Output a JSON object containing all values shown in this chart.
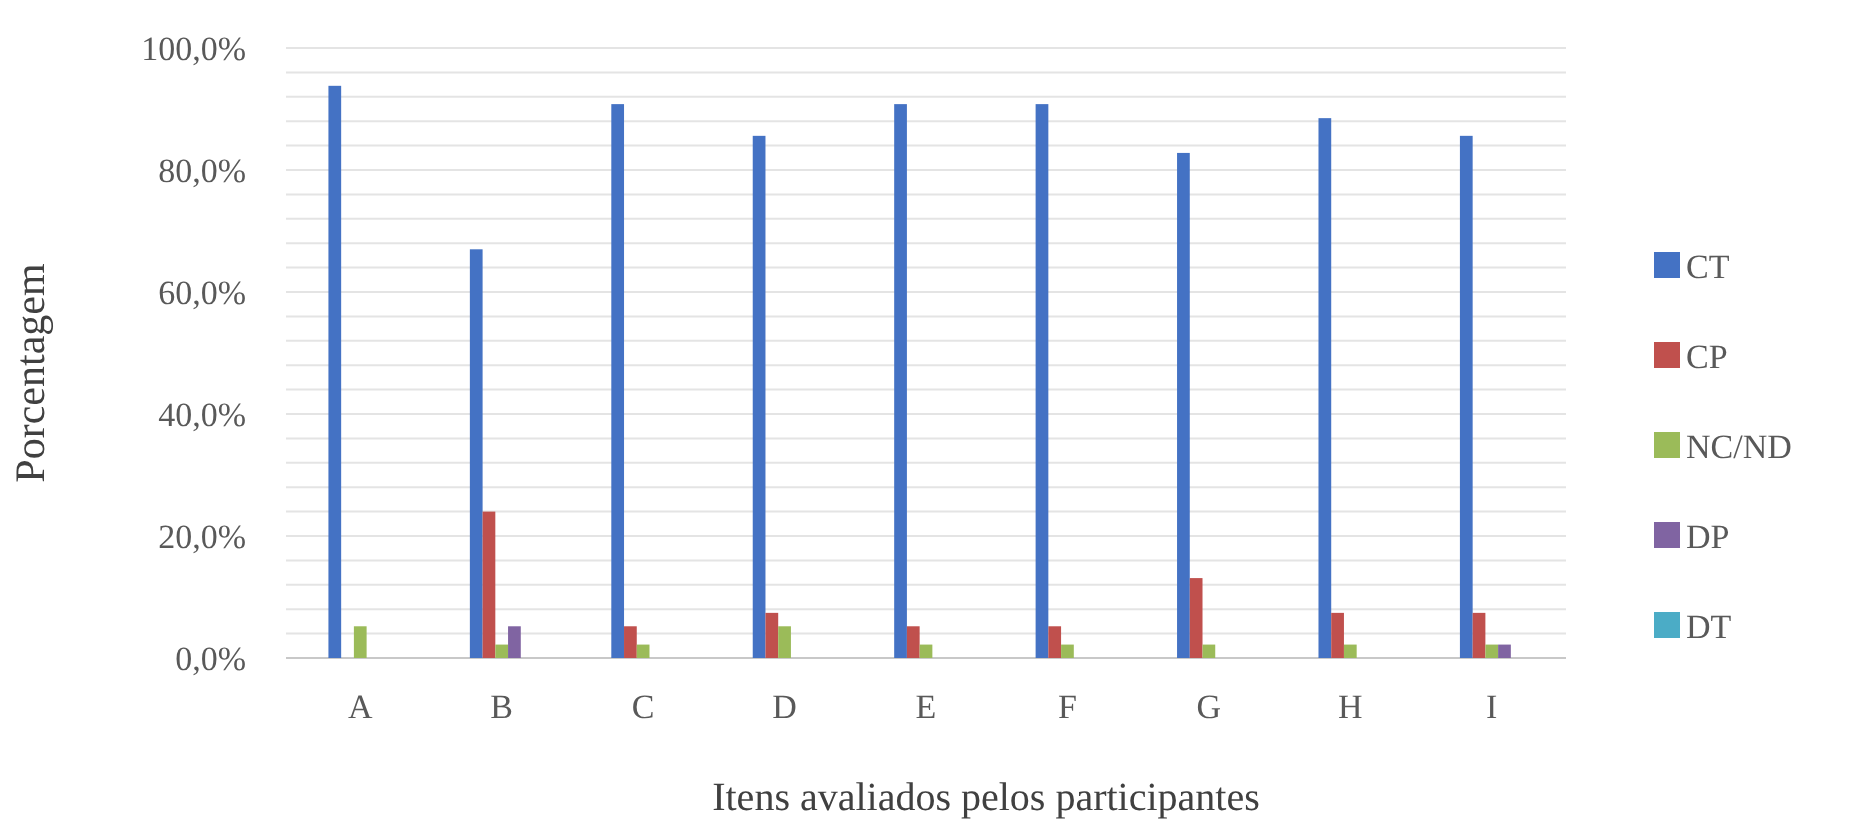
{
  "chart_data": {
    "type": "bar",
    "xlabel": "Itens avaliados pelos participantes",
    "ylabel": "Porcentagem",
    "categories": [
      "A",
      "B",
      "C",
      "D",
      "E",
      "F",
      "G",
      "H",
      "I"
    ],
    "series": [
      {
        "name": "CT",
        "color": "#4472c4",
        "values": [
          93.8,
          67,
          90.8,
          85.6,
          90.8,
          90.8,
          82.8,
          88.5,
          85.6
        ]
      },
      {
        "name": "CP",
        "color": "#c0504d",
        "values": [
          0,
          24,
          5.2,
          7.4,
          5.2,
          5.2,
          13.1,
          7.4,
          7.4
        ]
      },
      {
        "name": "NC/ND",
        "color": "#9bbb59",
        "values": [
          5.2,
          2.2,
          2.2,
          5.2,
          2.2,
          2.2,
          2.2,
          2.2,
          2.2
        ]
      },
      {
        "name": "DP",
        "color": "#8064a2",
        "values": [
          0,
          5.2,
          0,
          0,
          0,
          0,
          0,
          0,
          2.2
        ]
      },
      {
        "name": "DT",
        "color": "#4bacc6",
        "values": [
          0,
          0,
          0,
          0,
          0,
          0,
          0,
          0,
          0
        ]
      }
    ],
    "ylim": [
      0,
      100
    ],
    "yticks": [
      {
        "value": 0,
        "label": "0,0%"
      },
      {
        "value": 4,
        "label": null
      },
      {
        "value": 8,
        "label": null
      },
      {
        "value": 12,
        "label": null
      },
      {
        "value": 16,
        "label": null
      },
      {
        "value": 20,
        "label": "20,0%"
      },
      {
        "value": 24,
        "label": null
      },
      {
        "value": 28,
        "label": null
      },
      {
        "value": 32,
        "label": null
      },
      {
        "value": 36,
        "label": null
      },
      {
        "value": 40,
        "label": "40,0%"
      },
      {
        "value": 44,
        "label": null
      },
      {
        "value": 48,
        "label": null
      },
      {
        "value": 52,
        "label": null
      },
      {
        "value": 56,
        "label": null
      },
      {
        "value": 60,
        "label": "60,0%"
      },
      {
        "value": 64,
        "label": null
      },
      {
        "value": 68,
        "label": null
      },
      {
        "value": 72,
        "label": null
      },
      {
        "value": 76,
        "label": null
      },
      {
        "value": 80,
        "label": "80,0%"
      },
      {
        "value": 84,
        "label": null
      },
      {
        "value": 88,
        "label": null
      },
      {
        "value": 92,
        "label": null
      },
      {
        "value": 96,
        "label": null
      },
      {
        "value": 100,
        "label": "100,0%"
      }
    ],
    "grid": "y",
    "legend": "right"
  }
}
